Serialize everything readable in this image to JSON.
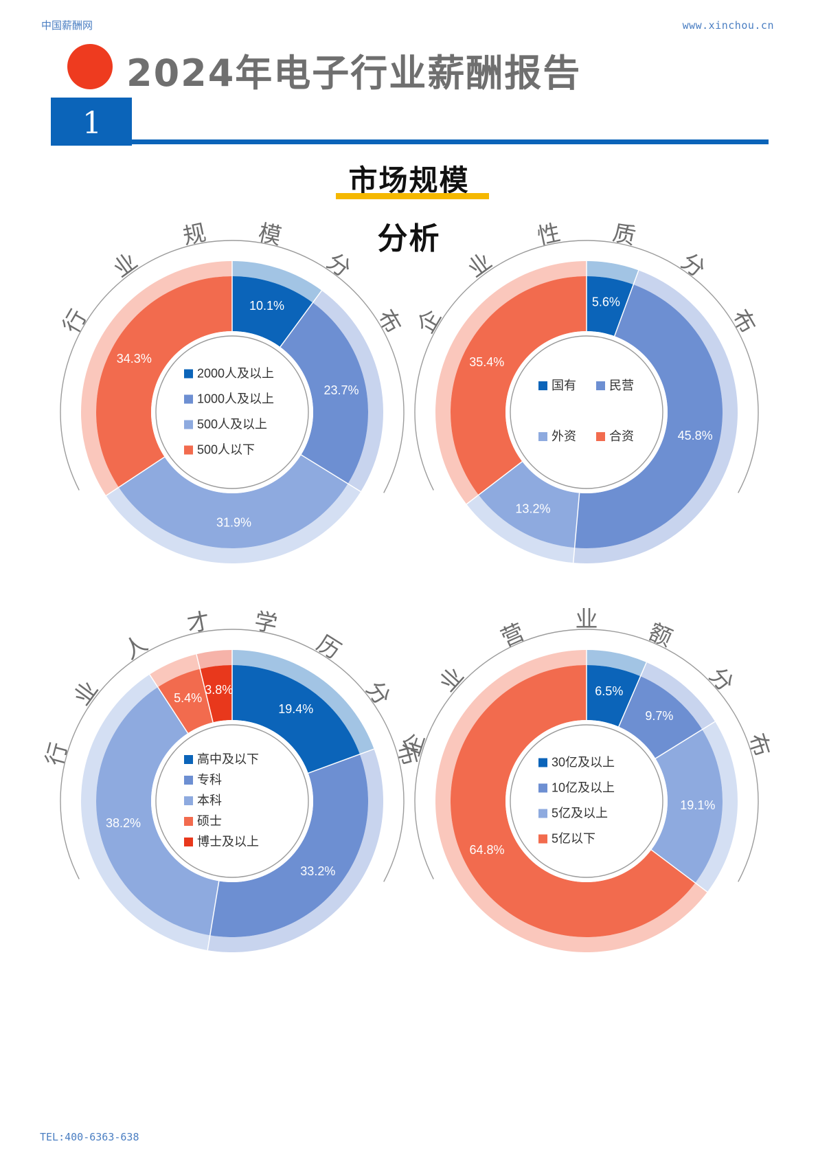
{
  "header": {
    "site": "中国薪酬网",
    "url": "www.xinchou.cn"
  },
  "doc_title": "2024年电子行业薪酬报告",
  "chapter_number": "1",
  "section_title_line1": "市场规模",
  "section_title_line2": "分析",
  "footer": {
    "tel": "TEL:400-6363-638"
  },
  "chart_data": [
    {
      "type": "pie",
      "title": "行业规模分布",
      "categories": [
        "2000人及以上",
        "1000人及以上",
        "500人及以上",
        "500人以下"
      ],
      "values": [
        10.1,
        23.7,
        31.9,
        34.3
      ],
      "labels": [
        "10.1%",
        "23.7%",
        "31.9%",
        "34.3%"
      ],
      "colors": [
        "#0b64b9",
        "#6d8fd2",
        "#8eaadf",
        "#f26b4e"
      ],
      "legend_layout": "column"
    },
    {
      "type": "pie",
      "title": "企业性质分布",
      "categories": [
        "国有",
        "民营",
        "外资",
        "合资"
      ],
      "values": [
        5.6,
        45.8,
        13.2,
        35.4
      ],
      "labels": [
        "5.6%",
        "45.8%",
        "13.2%",
        "35.4%"
      ],
      "colors": [
        "#0b64b9",
        "#6d8fd2",
        "#8eaadf",
        "#f26b4e"
      ],
      "legend_layout": "grid"
    },
    {
      "type": "pie",
      "title": "行业人才学历分布",
      "categories": [
        "高中及以下",
        "专科",
        "本科",
        "硕士",
        "博士及以上"
      ],
      "values": [
        19.4,
        33.2,
        38.2,
        5.4,
        3.8
      ],
      "labels": [
        "19.4%",
        "33.2%",
        "38.2%",
        "5.4%",
        "3.8%"
      ],
      "colors": [
        "#0b64b9",
        "#6d8fd2",
        "#8eaadf",
        "#f26b4e",
        "#e8381c"
      ],
      "legend_layout": "column"
    },
    {
      "type": "pie",
      "title": "企业营业额分布",
      "categories": [
        "30亿及以上",
        "10亿及以上",
        "5亿及以上",
        "5亿以下"
      ],
      "values": [
        6.5,
        9.7,
        19.1,
        64.8
      ],
      "labels": [
        "6.5%",
        "9.7%",
        "19.1%",
        "64.8%"
      ],
      "colors": [
        "#0b64b9",
        "#6d8fd2",
        "#8eaadf",
        "#f26b4e"
      ],
      "legend_layout": "column"
    }
  ]
}
